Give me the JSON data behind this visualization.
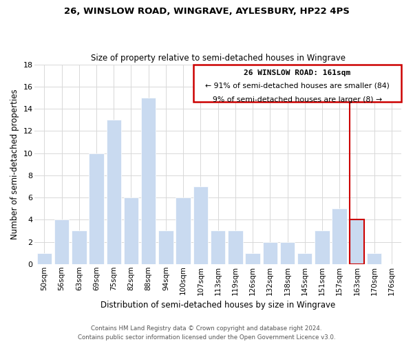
{
  "title": "26, WINSLOW ROAD, WINGRAVE, AYLESBURY, HP22 4PS",
  "subtitle": "Size of property relative to semi-detached houses in Wingrave",
  "xlabel": "Distribution of semi-detached houses by size in Wingrave",
  "ylabel": "Number of semi-detached properties",
  "footer_line1": "Contains HM Land Registry data © Crown copyright and database right 2024.",
  "footer_line2": "Contains public sector information licensed under the Open Government Licence v3.0.",
  "bar_labels": [
    "50sqm",
    "56sqm",
    "63sqm",
    "69sqm",
    "75sqm",
    "82sqm",
    "88sqm",
    "94sqm",
    "100sqm",
    "107sqm",
    "113sqm",
    "119sqm",
    "126sqm",
    "132sqm",
    "138sqm",
    "145sqm",
    "151sqm",
    "157sqm",
    "163sqm",
    "170sqm",
    "176sqm"
  ],
  "bar_values": [
    1,
    4,
    3,
    10,
    13,
    6,
    15,
    3,
    6,
    7,
    3,
    3,
    1,
    2,
    2,
    1,
    3,
    5,
    4,
    1,
    0
  ],
  "bar_color_normal": "#c9daf0",
  "property_line_index": 18,
  "property_line_color": "#cc0000",
  "annotation_title": "26 WINSLOW ROAD: 161sqm",
  "annotation_line1": "← 91% of semi-detached houses are smaller (84)",
  "annotation_line2": "9% of semi-detached houses are larger (8) →",
  "annotation_box_color": "#ffffff",
  "annotation_box_edge": "#cc0000",
  "ylim": [
    0,
    18
  ],
  "yticks": [
    0,
    2,
    4,
    6,
    8,
    10,
    12,
    14,
    16,
    18
  ],
  "background_color": "#ffffff",
  "grid_color": "#d8d8d8",
  "figsize": [
    6.0,
    5.0
  ],
  "dpi": 100
}
